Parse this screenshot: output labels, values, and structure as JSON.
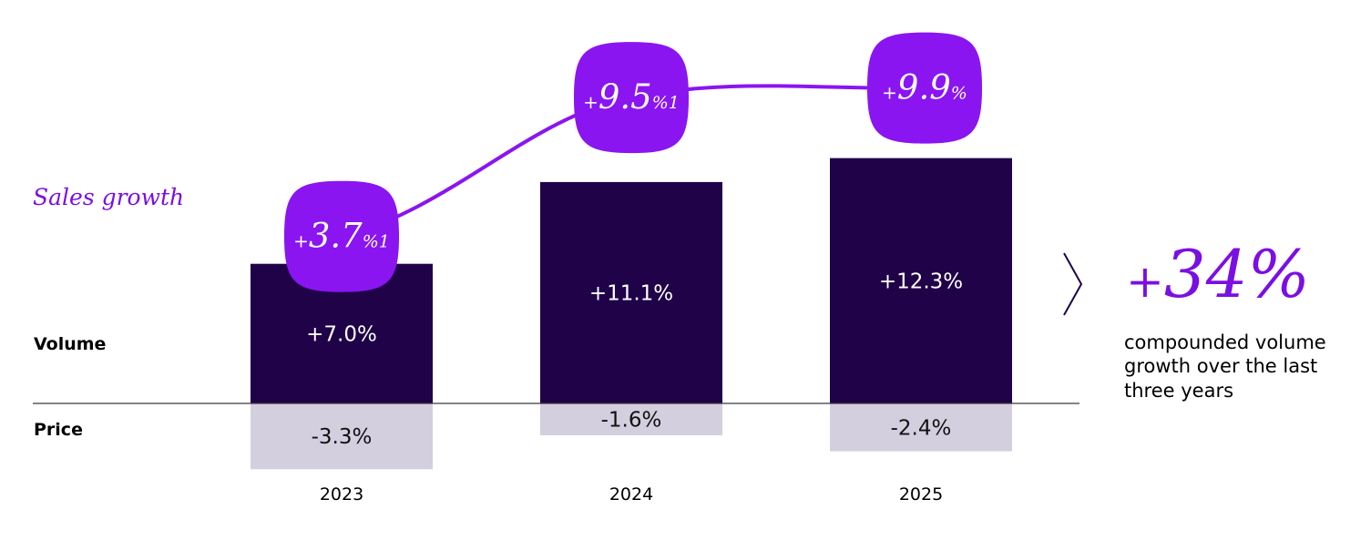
{
  "colors": {
    "volume_bar": "#1F0248",
    "price_bar": "#D3CFDF",
    "accent": "#7B0FE3",
    "bubble": "#8A15F0",
    "axis": "#3a3a3a"
  },
  "chart_data": {
    "type": "bar",
    "stacked": true,
    "categories": [
      "2023",
      "2024",
      "2025"
    ],
    "series": [
      {
        "name": "Volume",
        "values": [
          7.0,
          11.1,
          12.3
        ],
        "labels": [
          "+7.0%",
          "+11.1%",
          "+12.3%"
        ]
      },
      {
        "name": "Price",
        "values": [
          -3.3,
          -1.6,
          -2.4
        ],
        "labels": [
          "-3.3%",
          "-1.6%",
          "-2.4%"
        ]
      }
    ],
    "line_series": {
      "name": "Sales growth",
      "values": [
        3.7,
        9.5,
        9.9
      ],
      "labels": [
        {
          "sign": "+",
          "value": "3.7",
          "suffix": "%1"
        },
        {
          "sign": "+",
          "value": "9.5",
          "suffix": "%1"
        },
        {
          "sign": "+",
          "value": "9.9",
          "suffix": "%"
        }
      ]
    },
    "row_labels": {
      "volume": "Volume",
      "price": "Price"
    },
    "line_label": "Sales growth",
    "ylim": [
      -4,
      14
    ]
  },
  "summary": {
    "sign": "+",
    "value": "34%",
    "caption_lines": [
      "compounded volume",
      "growth over the last",
      "three years"
    ]
  }
}
